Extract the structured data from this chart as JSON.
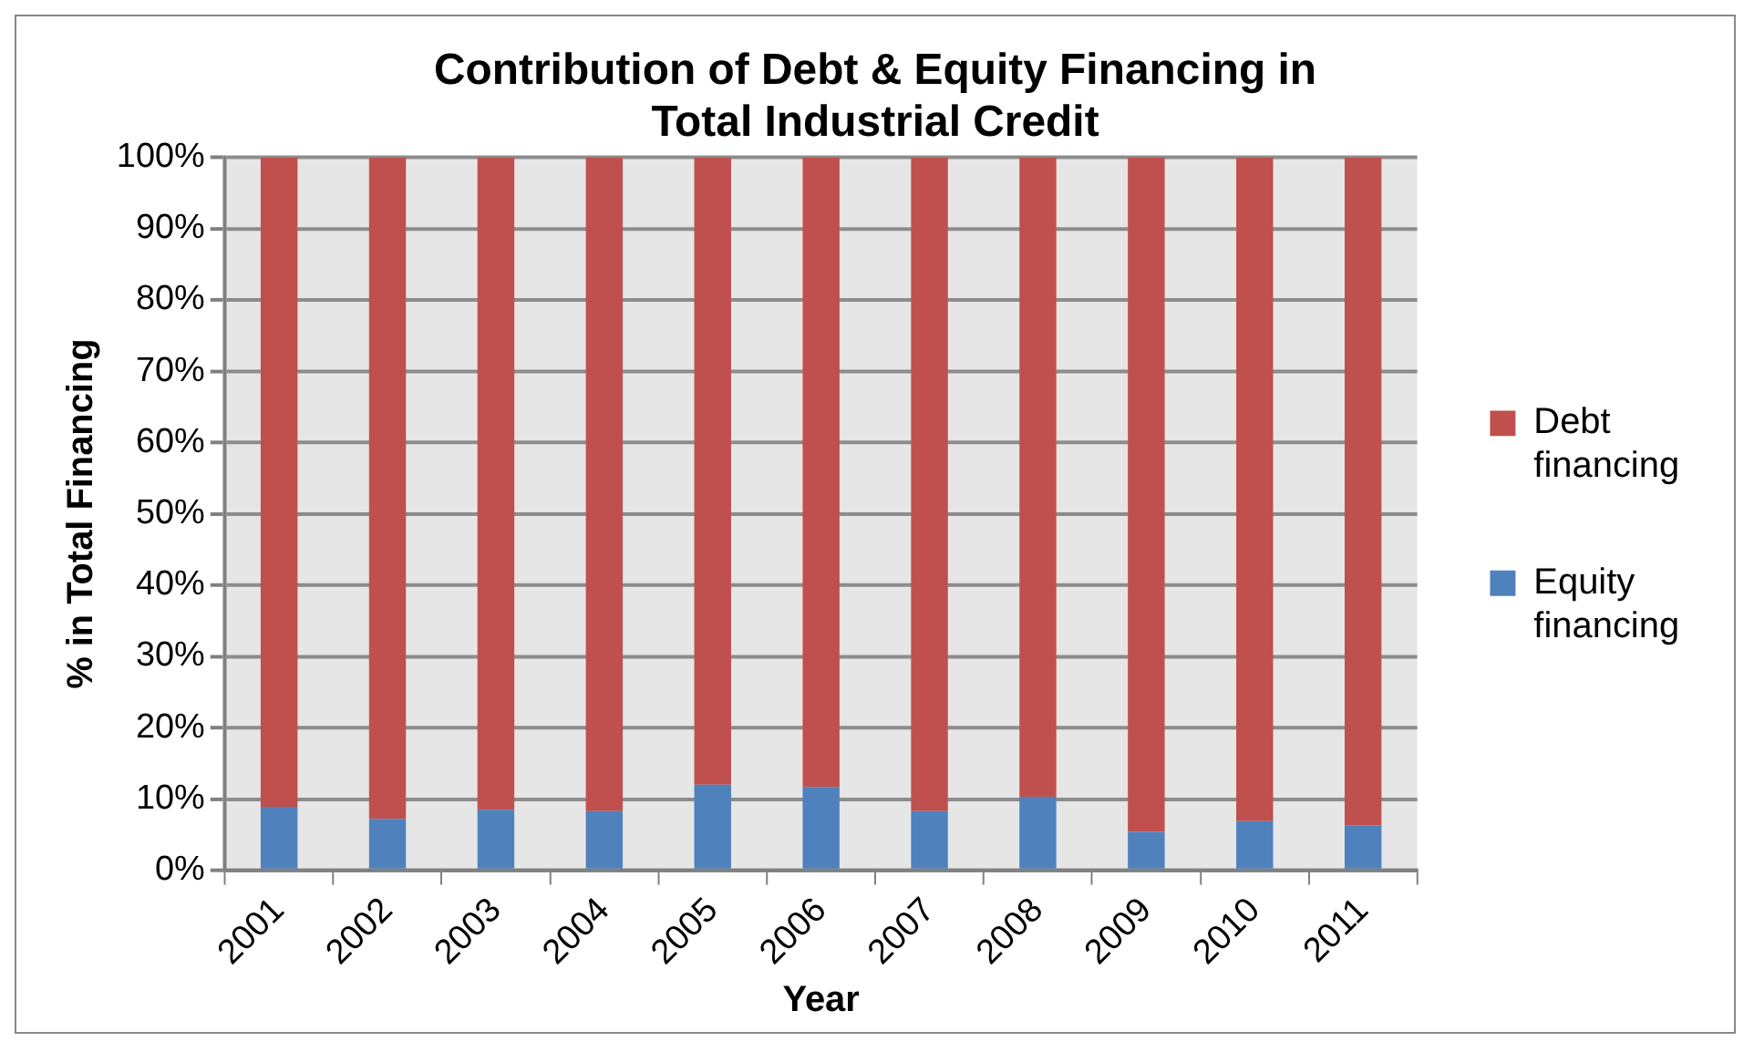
{
  "chart_data": {
    "type": "bar",
    "title": "Contribution of Debt & Equity Financing in Total Industrial Credit",
    "xlabel": "Year",
    "ylabel": "% in Total Financing",
    "categories": [
      "2001",
      "2002",
      "2003",
      "2004",
      "2005",
      "2006",
      "2007",
      "2008",
      "2009",
      "2010",
      "2011"
    ],
    "series": [
      {
        "name": "Equity financing",
        "color": "#4f81bd",
        "values": [
          8.9,
          7.2,
          8.5,
          8.3,
          12.0,
          11.7,
          8.3,
          10.3,
          5.4,
          6.9,
          6.3
        ]
      },
      {
        "name": "Debt financing",
        "color": "#c0504d",
        "values": [
          91.1,
          92.8,
          91.5,
          91.7,
          88.0,
          88.3,
          91.7,
          89.7,
          94.6,
          93.1,
          93.7
        ]
      }
    ],
    "stacked": true,
    "ylim": [
      0,
      100
    ],
    "yticks": [
      {
        "value": 0,
        "label": "0%"
      },
      {
        "value": 10,
        "label": "10%"
      },
      {
        "value": 20,
        "label": "20%"
      },
      {
        "value": 30,
        "label": "30%"
      },
      {
        "value": 40,
        "label": "40%"
      },
      {
        "value": 50,
        "label": "50%"
      },
      {
        "value": 60,
        "label": "60%"
      },
      {
        "value": 70,
        "label": "70%"
      },
      {
        "value": 80,
        "label": "80%"
      },
      {
        "value": 90,
        "label": "90%"
      },
      {
        "value": 100,
        "label": "100%"
      }
    ],
    "grid": "y",
    "legend": "right"
  }
}
